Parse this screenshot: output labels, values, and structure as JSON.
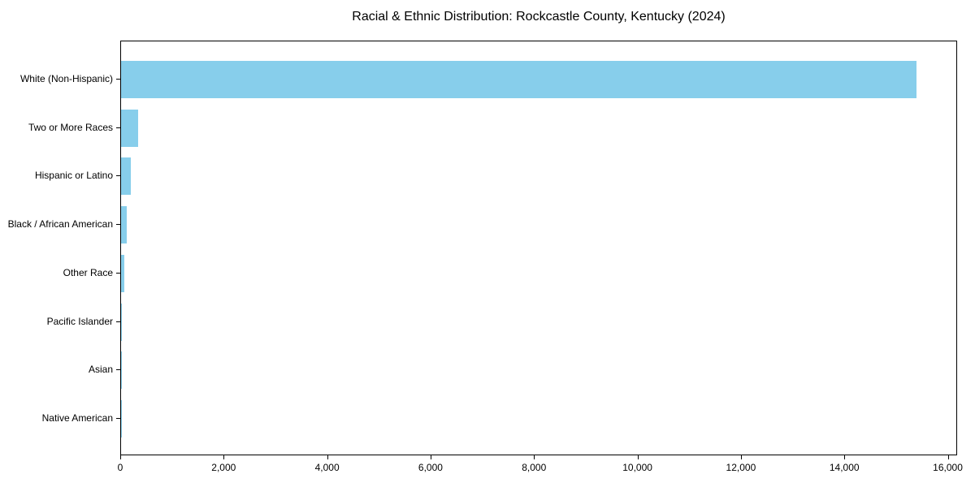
{
  "chart_data": {
    "type": "bar",
    "orientation": "horizontal",
    "title": "Racial & Ethnic Distribution: Rockcastle County, Kentucky (2024)",
    "xlabel": "",
    "ylabel": "",
    "categories": [
      "White (Non-Hispanic)",
      "Two or More Races",
      "Hispanic or Latino",
      "Black / African American",
      "Other Race",
      "Pacific Islander",
      "Asian",
      "Native American"
    ],
    "values": [
      15380,
      335,
      190,
      104,
      63,
      15,
      5,
      3
    ],
    "xlim": [
      0,
      16180
    ],
    "xticks": [
      0,
      2000,
      4000,
      6000,
      8000,
      10000,
      12000,
      14000,
      16000
    ],
    "xtick_labels": [
      "0",
      "2,000",
      "4,000",
      "6,000",
      "8,000",
      "10,000",
      "12,000",
      "14,000",
      "16,000"
    ],
    "grid": false,
    "legend": null,
    "bar_color": "#87CEEB"
  }
}
